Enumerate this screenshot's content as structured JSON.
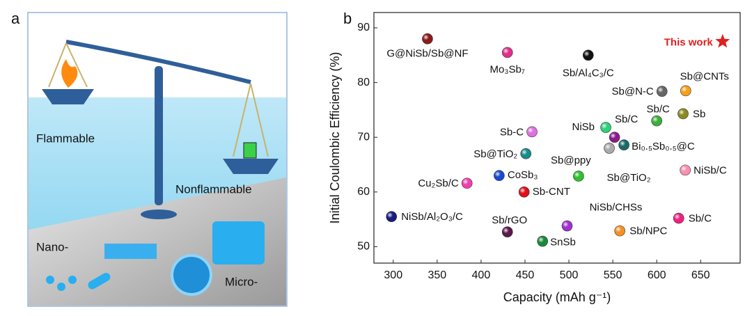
{
  "panel_a": {
    "letter": "a",
    "texts": [
      "Flammable",
      "Nonflammable",
      "Nano-",
      "Micro-"
    ]
  },
  "chart_data": {
    "type": "scatter",
    "letter": "b",
    "xlabel": "Capacity (mAh g⁻¹)",
    "ylabel": "Initial Coulombic Efficiency (%)",
    "xlim": [
      278,
      695
    ],
    "ylim": [
      47,
      92.8
    ],
    "xticks": [
      300,
      350,
      400,
      450,
      500,
      550,
      600,
      650
    ],
    "yticks": [
      50,
      60,
      70,
      80,
      90
    ],
    "points": [
      {
        "label": "G@NiSb/Sb@NF",
        "x": 339,
        "y": 88,
        "color": "#8b1a1a"
      },
      {
        "label": "Mo₃Sb₇",
        "x": 430,
        "y": 85.5,
        "color": "#e0308a"
      },
      {
        "label": "Sb/Al₄C₃/C",
        "x": 522,
        "y": 85,
        "color": "#111111"
      },
      {
        "label": "This work",
        "x": 675,
        "y": 87.5,
        "color": "#e0201e",
        "marker": "star"
      },
      {
        "label": "Sb@CNTs",
        "x": 633,
        "y": 78.5,
        "color": "#f5a01a"
      },
      {
        "label": "Sb@N-C",
        "x": 606,
        "y": 78.4,
        "color": "#666666"
      },
      {
        "label": "Sb/C",
        "x": 600,
        "y": 73,
        "color": "#3cae3a"
      },
      {
        "label": "Sb",
        "x": 630,
        "y": 74.3,
        "color": "#8a8a20"
      },
      {
        "label": "NiSb",
        "x": 542,
        "y": 71.8,
        "color": "#2fd07a"
      },
      {
        "label": "Sb/C",
        "x": 552,
        "y": 70,
        "color": "#8a1a8a"
      },
      {
        "label": "Bi₀.₅Sb₀.₅@C",
        "x": 562.7,
        "y": 68.6,
        "color": "#1a6a6a"
      },
      {
        "label": "Sb@TiO₂",
        "x": 546,
        "y": 68,
        "color": "#aaaaaa"
      },
      {
        "label": "Sb-C",
        "x": 458,
        "y": 71,
        "color": "#e070e0"
      },
      {
        "label": "Sb@TiO₂",
        "x": 451,
        "y": 67,
        "color": "#1a8a8a"
      },
      {
        "label": "Sb@ppy",
        "x": 511,
        "y": 62.9,
        "color": "#30c030"
      },
      {
        "label": "CoSb₃",
        "x": 420.6,
        "y": 63,
        "color": "#1a4ad0"
      },
      {
        "label": "Sb-CNT",
        "x": 449,
        "y": 60,
        "color": "#e0101a"
      },
      {
        "label": "Cu₂Sb/C",
        "x": 384,
        "y": 61.6,
        "color": "#f040b0"
      },
      {
        "label": "NiSb/C",
        "x": 632.5,
        "y": 64,
        "color": "#f890b0"
      },
      {
        "label": "NiSb/Al₂O₃/C",
        "x": 298,
        "y": 55.5,
        "color": "#1a1a80"
      },
      {
        "label": "Sb/rGO",
        "x": 430,
        "y": 52.7,
        "color": "#5a1a4a"
      },
      {
        "label": "SnSb",
        "x": 470,
        "y": 51,
        "color": "#1a8a3a"
      },
      {
        "label": "NiSb/CHSs",
        "x": 498,
        "y": 53.8,
        "color": "#a030d0"
      },
      {
        "label": "Sb/NPC",
        "x": 558,
        "y": 52.9,
        "color": "#f59020"
      },
      {
        "label": "Sb/C",
        "x": 625,
        "y": 55.2,
        "color": "#f02080"
      }
    ]
  }
}
